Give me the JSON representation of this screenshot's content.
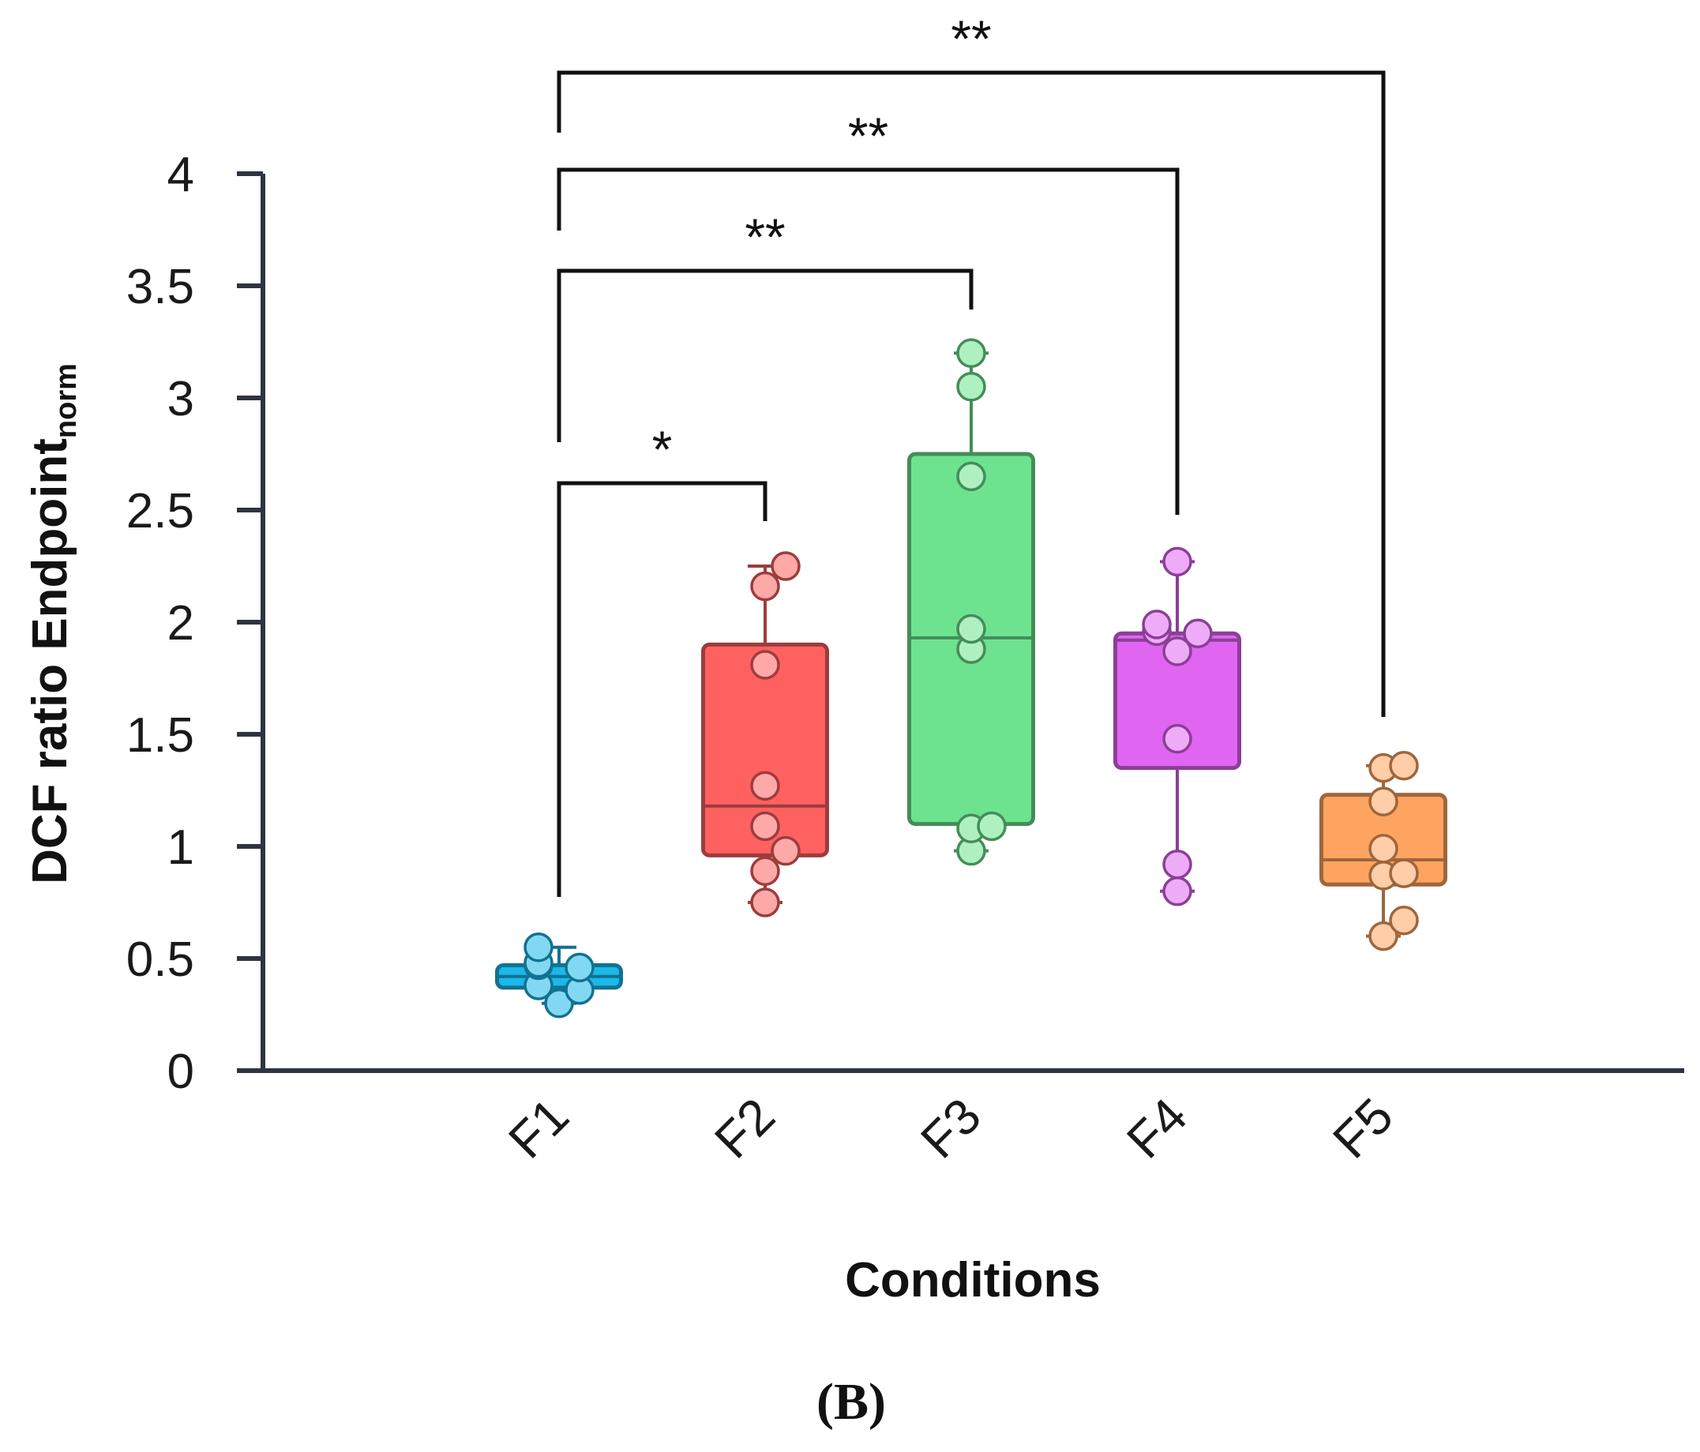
{
  "chart_data": {
    "type": "box",
    "panel_label": "(B)",
    "xlabel": "Conditions",
    "ylabel_main": "DCF ratio Endpoint",
    "ylabel_sub": "norm",
    "ylim": [
      0,
      4
    ],
    "yticks": [
      "0",
      "0.5",
      "1",
      "1.5",
      "2",
      "2.5",
      "3",
      "3.5",
      "4"
    ],
    "categories": [
      "F1",
      "F2",
      "F3",
      "F4",
      "F5"
    ],
    "series": [
      {
        "category": "F1",
        "color": "#1bb8ea",
        "min": 0.3,
        "q1": 0.37,
        "median": 0.42,
        "q3": 0.47,
        "max": 0.55,
        "points": [
          0.3,
          0.36,
          0.38,
          0.46,
          0.47,
          0.48,
          0.55
        ]
      },
      {
        "category": "F2",
        "color": "#ff6161",
        "min": 0.75,
        "q1": 0.96,
        "median": 1.18,
        "q3": 1.9,
        "max": 2.25,
        "points": [
          0.75,
          0.89,
          0.98,
          1.09,
          1.27,
          1.81,
          2.16,
          2.25
        ]
      },
      {
        "category": "F3",
        "color": "#6ee38f",
        "min": 0.98,
        "q1": 1.1,
        "median": 1.93,
        "q3": 2.75,
        "max": 3.2,
        "points": [
          0.98,
          1.08,
          1.09,
          1.88,
          1.97,
          2.65,
          3.05,
          3.2
        ]
      },
      {
        "category": "F4",
        "color": "#e066f2",
        "min": 0.8,
        "q1": 1.35,
        "median": 1.92,
        "q3": 1.95,
        "max": 2.27,
        "points": [
          0.8,
          0.92,
          1.48,
          1.87,
          1.95,
          1.96,
          1.99,
          2.27
        ]
      },
      {
        "category": "F5",
        "color": "#ffa460",
        "min": 0.6,
        "q1": 0.83,
        "median": 0.94,
        "q3": 1.23,
        "max": 1.36,
        "points": [
          0.6,
          0.67,
          0.87,
          0.88,
          0.99,
          1.2,
          1.35,
          1.36
        ]
      }
    ],
    "significance": [
      {
        "from": "F1",
        "to": "F2",
        "label": "*"
      },
      {
        "from": "F1",
        "to": "F3",
        "label": "**"
      },
      {
        "from": "F1",
        "to": "F4",
        "label": "**"
      },
      {
        "from": "F1",
        "to": "F5",
        "label": "**"
      }
    ]
  }
}
